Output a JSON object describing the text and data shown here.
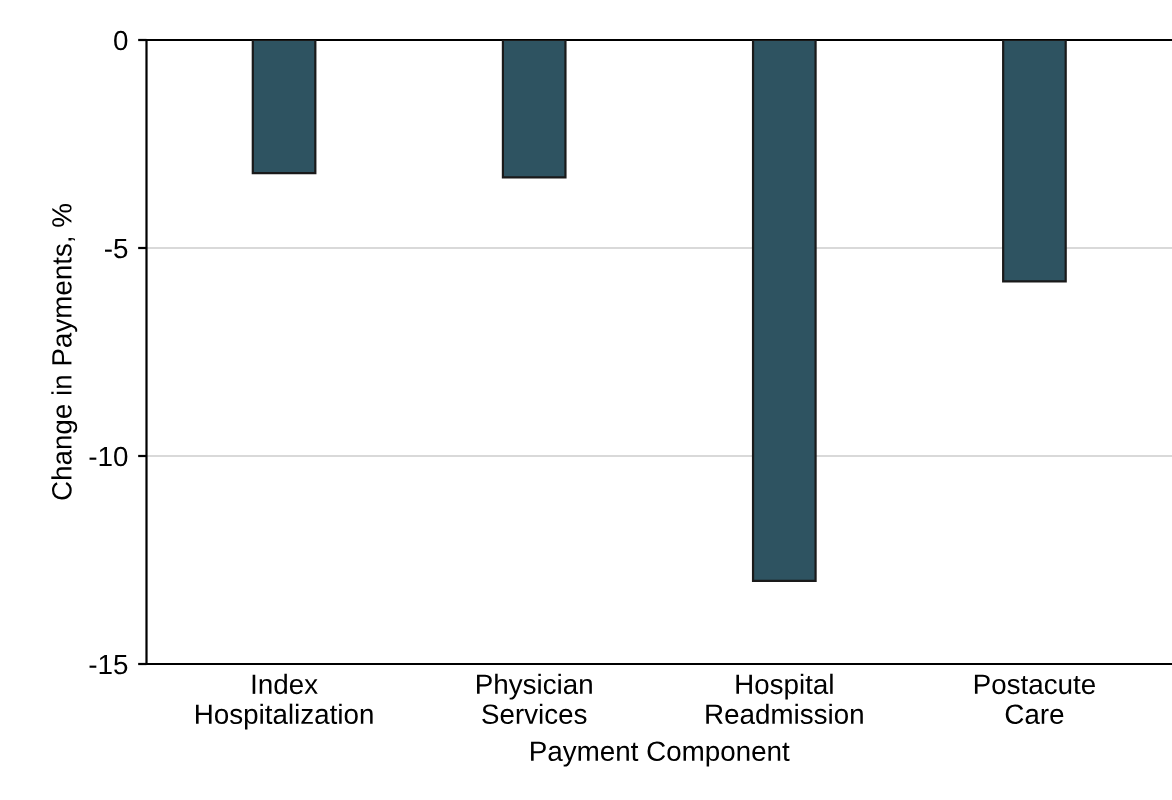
{
  "chart_data": {
    "type": "bar",
    "xlabel": "Payment Component",
    "ylabel": "Change in Payments, %",
    "categories": [
      "Index\nHospitalization",
      "Physician\nServices",
      "Hospital\nReadmission",
      "Postacute\nCare"
    ],
    "values": [
      -3.2,
      -3.3,
      -13.0,
      -5.8
    ],
    "color": "#2e5361",
    "ylim": [
      -15,
      0
    ],
    "yticks": [
      0,
      -5,
      -10,
      -15
    ],
    "grid": "y"
  }
}
